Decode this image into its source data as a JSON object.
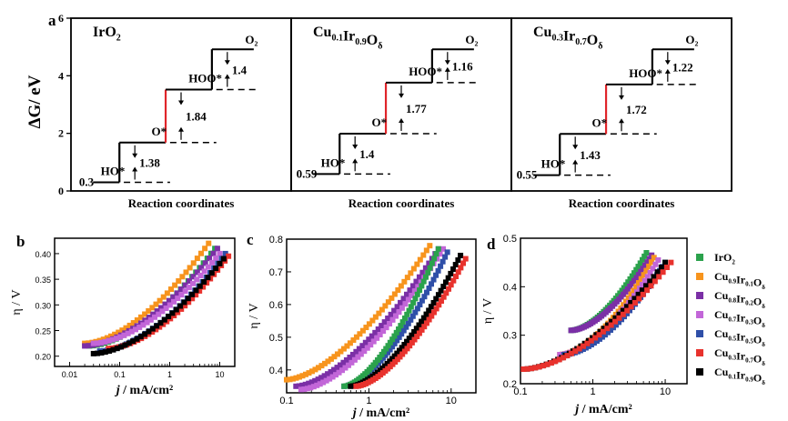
{
  "figure": {
    "colors": {
      "IrO2": "#2ba24c",
      "Cu0.9Ir0.1Od": "#f7941d",
      "Cu0.8Ir0.2Od": "#7b2fa6",
      "Cu0.7Ir0.3Od": "#c266d8",
      "Cu0.5Ir0.5Od": "#2f4fa8",
      "Cu0.3Ir0.7Od": "#e8322d",
      "Cu0.1Ir0.9Od": "#000000"
    },
    "legend": [
      {
        "id": "IrO2",
        "main": [
          "Ir",
          "O"
        ],
        "subs": [
          "",
          "2"
        ]
      },
      {
        "id": "Cu0.9Ir0.1Od",
        "main": [
          "Cu",
          "Ir",
          "O"
        ],
        "subs": [
          "0.9",
          "0.1",
          "δ"
        ]
      },
      {
        "id": "Cu0.8Ir0.2Od",
        "main": [
          "Cu",
          "Ir",
          "O"
        ],
        "subs": [
          "0.8",
          "0.2",
          "δ"
        ]
      },
      {
        "id": "Cu0.7Ir0.3Od",
        "main": [
          "Cu",
          "Ir",
          "O"
        ],
        "subs": [
          "0.7",
          "0.3",
          "δ"
        ]
      },
      {
        "id": "Cu0.5Ir0.5Od",
        "main": [
          "Cu",
          "Ir",
          "O"
        ],
        "subs": [
          "0.5",
          "0.5",
          "δ"
        ]
      },
      {
        "id": "Cu0.3Ir0.7Od",
        "main": [
          "Cu",
          "Ir",
          "O"
        ],
        "subs": [
          "0.3",
          "0.7",
          "δ"
        ]
      },
      {
        "id": "Cu0.1Ir0.9Od",
        "main": [
          "Cu",
          "Ir",
          "O"
        ],
        "subs": [
          "0.1",
          "0.9",
          "δ"
        ]
      }
    ]
  },
  "chart_data": [
    {
      "panel": "a",
      "type": "line",
      "ylabel": "ΔG/ eV",
      "ylim": [
        0,
        6
      ],
      "yticks": [
        "0",
        "2",
        "4",
        "6"
      ],
      "subpanels": [
        {
          "title_main": [
            "Ir",
            "O"
          ],
          "title_subs": [
            "",
            "2"
          ],
          "xlabel": "Reaction coordinates",
          "levels": [
            0,
            0.3,
            1.68,
            3.52,
            4.92
          ],
          "labels": {
            "start": "0.3",
            "s1": "HO*",
            "s2": "O*",
            "s3": "HOO*",
            "s4": "O₂"
          },
          "steps": [
            "1.38",
            "1.84",
            "1.4"
          ],
          "red_step": 2
        },
        {
          "title_main": [
            "Cu",
            "Ir",
            "O"
          ],
          "title_subs": [
            "0.1",
            "0.9",
            "δ"
          ],
          "xlabel": "Reaction coordinates",
          "levels": [
            0,
            0.59,
            1.99,
            3.76,
            4.92
          ],
          "labels": {
            "start": "0.59",
            "s1": "HO*",
            "s2": "O*",
            "s3": "HOO*",
            "s4": "O₂"
          },
          "steps": [
            "1.4",
            "1.77",
            "1.16"
          ],
          "red_step": 2
        },
        {
          "title_main": [
            "Cu",
            "Ir",
            "O"
          ],
          "title_subs": [
            "0.3",
            "0.7",
            "δ"
          ],
          "xlabel": "Reaction coordinates",
          "levels": [
            0,
            0.55,
            1.98,
            3.7,
            4.92
          ],
          "labels": {
            "start": "0.55",
            "s1": "HO*",
            "s2": "O*",
            "s3": "HOO*",
            "s4": "O₂"
          },
          "steps": [
            "1.43",
            "1.72",
            "1.22"
          ],
          "red_step": 2
        }
      ]
    },
    {
      "panel": "b",
      "type": "scatter",
      "xscale": "log",
      "xlabel_main": "j",
      "xlabel_rest": " / mA/cm²",
      "ylabel": "η / V",
      "xlim": [
        0.005,
        20
      ],
      "ylim": [
        0.18,
        0.43
      ],
      "xticks": [
        0.01,
        0.1,
        1,
        10
      ],
      "xticklabels": [
        "0.01",
        "0.1",
        "1",
        "10"
      ],
      "yticks": [
        0.2,
        0.25,
        0.3,
        0.35,
        0.4
      ],
      "yticklabels": [
        "0.20",
        "0.25",
        "0.30",
        "0.35",
        "0.40"
      ],
      "series": [
        {
          "id": "Cu0.9Ir0.1Od",
          "x_range": [
            0.02,
            6
          ],
          "y_range": [
            0.225,
            0.42
          ]
        },
        {
          "id": "IrO2",
          "x_range": [
            0.025,
            8
          ],
          "y_range": [
            0.22,
            0.41
          ]
        },
        {
          "id": "Cu0.8Ir0.2Od",
          "x_range": [
            0.02,
            9
          ],
          "y_range": [
            0.22,
            0.41
          ]
        },
        {
          "id": "Cu0.7Ir0.3Od",
          "x_range": [
            0.03,
            10
          ],
          "y_range": [
            0.225,
            0.4
          ]
        },
        {
          "id": "Cu0.5Ir0.5Od",
          "x_range": [
            0.04,
            13
          ],
          "y_range": [
            0.21,
            0.4
          ]
        },
        {
          "id": "Cu0.3Ir0.7Od",
          "x_range": [
            0.06,
            15
          ],
          "y_range": [
            0.215,
            0.395
          ]
        },
        {
          "id": "Cu0.1Ir0.9Od",
          "x_range": [
            0.03,
            12
          ],
          "y_range": [
            0.205,
            0.39
          ]
        }
      ]
    },
    {
      "panel": "c",
      "type": "scatter",
      "xscale": "log",
      "xlabel_main": "j",
      "xlabel_rest": " / mA/cm²",
      "ylabel": "η / V",
      "xlim": [
        0.1,
        20
      ],
      "ylim": [
        0.33,
        0.8
      ],
      "xticks": [
        0.1,
        1,
        10
      ],
      "xticklabels": [
        "0.1",
        "1",
        "10"
      ],
      "yticks": [
        0.4,
        0.5,
        0.6,
        0.7,
        0.8
      ],
      "yticklabels": [
        "0.4",
        "0.5",
        "0.6",
        "0.7",
        "0.8"
      ],
      "series": [
        {
          "id": "Cu0.9Ir0.1Od",
          "x_range": [
            0.1,
            5.5
          ],
          "y_range": [
            0.37,
            0.78
          ]
        },
        {
          "id": "Cu0.8Ir0.2Od",
          "x_range": [
            0.13,
            7
          ],
          "y_range": [
            0.35,
            0.77
          ]
        },
        {
          "id": "Cu0.7Ir0.3Od",
          "x_range": [
            0.15,
            8
          ],
          "y_range": [
            0.34,
            0.77
          ]
        },
        {
          "id": "Cu0.5Ir0.5Od",
          "x_range": [
            0.5,
            9
          ],
          "y_range": [
            0.35,
            0.76
          ]
        },
        {
          "id": "IrO2",
          "x_range": [
            0.5,
            7
          ],
          "y_range": [
            0.35,
            0.77
          ]
        },
        {
          "id": "Cu0.1Ir0.9Od",
          "x_range": [
            0.6,
            13
          ],
          "y_range": [
            0.35,
            0.75
          ]
        },
        {
          "id": "Cu0.3Ir0.7Od",
          "x_range": [
            0.7,
            15
          ],
          "y_range": [
            0.35,
            0.74
          ]
        }
      ]
    },
    {
      "panel": "d",
      "type": "scatter",
      "xscale": "log",
      "xlabel_main": "j",
      "xlabel_rest": " / mA/cm²",
      "ylabel": "η / V",
      "xlim": [
        0.1,
        20
      ],
      "ylim": [
        0.2,
        0.5
      ],
      "xticks": [
        0.1,
        1,
        10
      ],
      "xticklabels": [
        "0.1",
        "1",
        "10"
      ],
      "yticks": [
        0.2,
        0.3,
        0.4,
        0.5
      ],
      "yticklabels": [
        "0.2",
        "0.3",
        "0.4",
        "0.5"
      ],
      "series": [
        {
          "id": "IrO2",
          "x_range": [
            0.5,
            5.5
          ],
          "y_range": [
            0.31,
            0.47
          ]
        },
        {
          "id": "Cu0.8Ir0.2Od",
          "x_range": [
            0.5,
            6.5
          ],
          "y_range": [
            0.31,
            0.465
          ]
        },
        {
          "id": "Cu0.9Ir0.1Od",
          "x_range": [
            0.35,
            7
          ],
          "y_range": [
            0.26,
            0.46
          ]
        },
        {
          "id": "Cu0.7Ir0.3Od",
          "x_range": [
            0.35,
            8
          ],
          "y_range": [
            0.26,
            0.455
          ]
        },
        {
          "id": "Cu0.5Ir0.5Od",
          "x_range": [
            0.4,
            10
          ],
          "y_range": [
            0.26,
            0.45
          ]
        },
        {
          "id": "Cu0.1Ir0.9Od",
          "x_range": [
            0.11,
            10
          ],
          "y_range": [
            0.23,
            0.45
          ]
        },
        {
          "id": "Cu0.3Ir0.7Od",
          "x_range": [
            0.11,
            12
          ],
          "y_range": [
            0.23,
            0.45
          ]
        }
      ]
    }
  ]
}
